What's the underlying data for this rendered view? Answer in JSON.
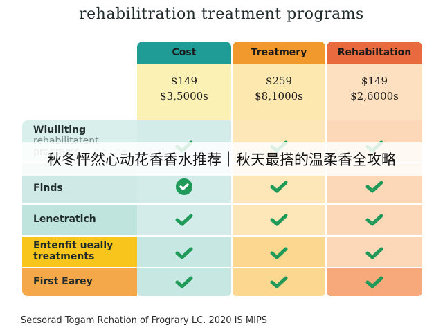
{
  "title": "rehabilitration treatment programs",
  "colors": {
    "cost": "#1e9c95",
    "treatment": "#f2992e",
    "rehab": "#ea6a3f",
    "check": "#1f9a58"
  },
  "columns": [
    {
      "label": "Cost",
      "price_line1": "$149",
      "price_line2": "$3,5000s"
    },
    {
      "label": "Treatmery",
      "price_line1": "$259",
      "price_line2": "$8,1000s"
    },
    {
      "label": "Rehabiltation",
      "price_line1": "$149",
      "price_line2": "$2,6000s"
    }
  ],
  "rows": [
    {
      "label_line1": "Wlulliting",
      "label_line2": "rehabilitatent",
      "label_line3": "programs",
      "checks": [
        "check-icon",
        "check-icon",
        "check-icon"
      ]
    },
    {
      "label_line1": "Finds",
      "checks": [
        "check-circle-icon",
        "check-icon",
        "check-icon"
      ]
    },
    {
      "label_line1": "Lenetratich",
      "checks": [
        "check-icon",
        "check-icon",
        "check-icon"
      ]
    },
    {
      "label_line1": "Entenfit ueally",
      "label_line2": "treatments",
      "checks": [
        "check-icon",
        "check-icon",
        "check-icon"
      ]
    },
    {
      "label_line1": "First Earey",
      "checks": [
        "check-icon",
        "check-icon",
        "check-icon"
      ]
    }
  ],
  "overlay_text": "秋冬怦然心动花香香水推荐｜秋天最搭的温柔香全攻略",
  "footer": "Secsorad Togam Rchation of Frograry LC. 2020 IS MIPS"
}
